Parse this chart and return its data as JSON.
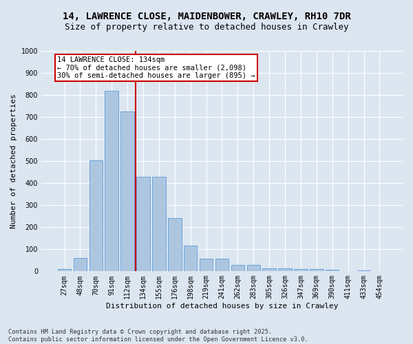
{
  "title_line1": "14, LAWRENCE CLOSE, MAIDENBOWER, CRAWLEY, RH10 7DR",
  "title_line2": "Size of property relative to detached houses in Crawley",
  "xlabel": "Distribution of detached houses by size in Crawley",
  "ylabel": "Number of detached properties",
  "bins": [
    "27sqm",
    "48sqm",
    "70sqm",
    "91sqm",
    "112sqm",
    "134sqm",
    "155sqm",
    "176sqm",
    "198sqm",
    "219sqm",
    "241sqm",
    "262sqm",
    "283sqm",
    "305sqm",
    "326sqm",
    "347sqm",
    "369sqm",
    "390sqm",
    "411sqm",
    "433sqm",
    "454sqm"
  ],
  "values": [
    10,
    60,
    505,
    820,
    725,
    430,
    430,
    240,
    115,
    58,
    58,
    30,
    30,
    15,
    15,
    10,
    10,
    8,
    0,
    5,
    0
  ],
  "bar_color": "#adc6e0",
  "bar_edge_color": "#5b9bd5",
  "vline_color": "#cc0000",
  "vline_x_index": 4.5,
  "annotation_line1": "14 LAWRENCE CLOSE: 134sqm",
  "annotation_line2": "← 70% of detached houses are smaller (2,098)",
  "annotation_line3": "30% of semi-detached houses are larger (895) →",
  "annotation_box_color": "#cc0000",
  "ylim": [
    0,
    1000
  ],
  "yticks": [
    0,
    100,
    200,
    300,
    400,
    500,
    600,
    700,
    800,
    900,
    1000
  ],
  "bg_color": "#dce6f1",
  "plot_bg_color": "#dce6f1",
  "footer_text": "Contains HM Land Registry data © Crown copyright and database right 2025.\nContains public sector information licensed under the Open Government Licence v3.0.",
  "grid_color": "#ffffff",
  "title_fontsize": 10,
  "subtitle_fontsize": 9,
  "axis_label_fontsize": 8,
  "tick_fontsize": 7,
  "annotation_fontsize": 7.5,
  "ylabel_fontsize": 8
}
